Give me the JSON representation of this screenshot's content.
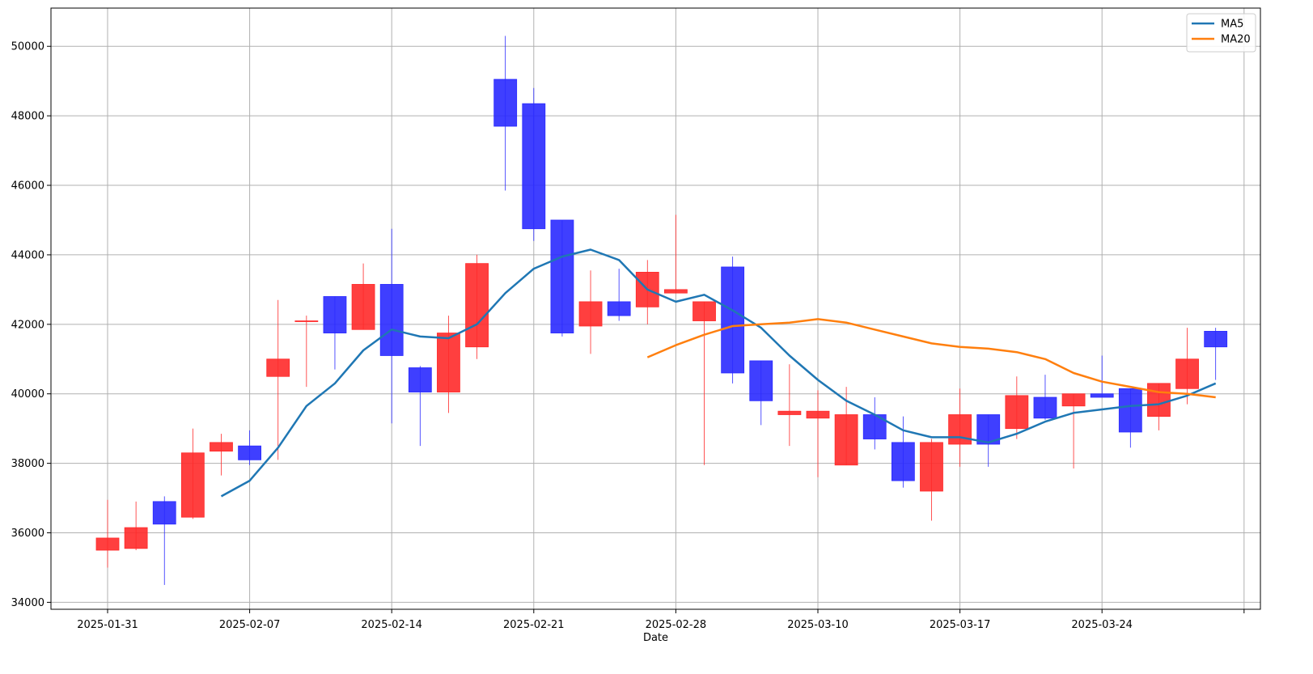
{
  "chart_data": {
    "type": "candlestick",
    "xlabel": "Date",
    "ylabel": "",
    "ylim": [
      33800,
      51100
    ],
    "grid": true,
    "legend_position": "top-right",
    "colors": {
      "up": "#ff2a2a",
      "down": "#2a2aff",
      "ma5": "#1f77b4",
      "ma20": "#ff7f0e"
    },
    "x_ticks": [
      {
        "pos": 0,
        "label": "2025-01-31"
      },
      {
        "pos": 5,
        "label": "2025-02-07"
      },
      {
        "pos": 10,
        "label": "2025-02-14"
      },
      {
        "pos": 15,
        "label": "2025-02-21"
      },
      {
        "pos": 20,
        "label": "2025-02-28"
      },
      {
        "pos": 25,
        "label": "2025-03-10"
      },
      {
        "pos": 30,
        "label": "2025-03-17"
      },
      {
        "pos": 35,
        "label": "2025-03-24"
      },
      {
        "pos": 40,
        "label": ""
      }
    ],
    "y_ticks": [
      34000,
      36000,
      38000,
      40000,
      42000,
      44000,
      46000,
      48000,
      50000
    ],
    "candles": [
      {
        "open": 35500,
        "high": 36950,
        "low": 35000,
        "close": 35850
      },
      {
        "open": 35550,
        "high": 36900,
        "low": 35500,
        "close": 36150
      },
      {
        "open": 36900,
        "high": 37050,
        "low": 34500,
        "close": 36250
      },
      {
        "open": 36450,
        "high": 39000,
        "low": 36400,
        "close": 38300
      },
      {
        "open": 38350,
        "high": 38850,
        "low": 37650,
        "close": 38600
      },
      {
        "open": 38500,
        "high": 38950,
        "low": 37950,
        "close": 38100
      },
      {
        "open": 40500,
        "high": 42700,
        "low": 38100,
        "close": 41000
      },
      {
        "open": 42100,
        "high": 42250,
        "low": 40200,
        "close": 42100
      },
      {
        "open": 42800,
        "high": 42800,
        "low": 40700,
        "close": 41750
      },
      {
        "open": 41850,
        "high": 43750,
        "low": 41850,
        "close": 43150
      },
      {
        "open": 43150,
        "high": 44750,
        "low": 39150,
        "close": 41100
      },
      {
        "open": 40750,
        "high": 40800,
        "low": 38500,
        "close": 40050
      },
      {
        "open": 40050,
        "high": 42250,
        "low": 39450,
        "close": 41750
      },
      {
        "open": 41350,
        "high": 44000,
        "low": 41000,
        "close": 43750
      },
      {
        "open": 49050,
        "high": 50300,
        "low": 45850,
        "close": 47700
      },
      {
        "open": 48350,
        "high": 48800,
        "low": 44400,
        "close": 44750
      },
      {
        "open": 45000,
        "high": 45000,
        "low": 41650,
        "close": 41750
      },
      {
        "open": 41950,
        "high": 43550,
        "low": 41150,
        "close": 42650
      },
      {
        "open": 42650,
        "high": 43600,
        "low": 42100,
        "close": 42250
      },
      {
        "open": 42500,
        "high": 43850,
        "low": 42000,
        "close": 43500
      },
      {
        "open": 42900,
        "high": 45150,
        "low": 42900,
        "close": 43000
      },
      {
        "open": 42100,
        "high": 42650,
        "low": 37950,
        "close": 42650
      },
      {
        "open": 43650,
        "high": 43950,
        "low": 40300,
        "close": 40600
      },
      {
        "open": 40950,
        "high": 40950,
        "low": 39100,
        "close": 39800
      },
      {
        "open": 39400,
        "high": 40850,
        "low": 38500,
        "close": 39500
      },
      {
        "open": 39300,
        "high": 40100,
        "low": 37600,
        "close": 39500
      },
      {
        "open": 37950,
        "high": 40200,
        "low": 37950,
        "close": 39400
      },
      {
        "open": 39400,
        "high": 39900,
        "low": 38400,
        "close": 38700
      },
      {
        "open": 38600,
        "high": 39350,
        "low": 37300,
        "close": 37500
      },
      {
        "open": 37200,
        "high": 38700,
        "low": 36350,
        "close": 38600
      },
      {
        "open": 38550,
        "high": 40150,
        "low": 37900,
        "close": 39400
      },
      {
        "open": 39400,
        "high": 39400,
        "low": 37900,
        "close": 38550
      },
      {
        "open": 39000,
        "high": 40500,
        "low": 38700,
        "close": 39950
      },
      {
        "open": 39900,
        "high": 40550,
        "low": 39250,
        "close": 39300
      },
      {
        "open": 39650,
        "high": 40000,
        "low": 37850,
        "close": 40000
      },
      {
        "open": 40000,
        "high": 41100,
        "low": 39900,
        "close": 39900
      },
      {
        "open": 40150,
        "high": 40150,
        "low": 38450,
        "close": 38900
      },
      {
        "open": 39350,
        "high": 40300,
        "low": 38950,
        "close": 40300
      },
      {
        "open": 40150,
        "high": 41900,
        "low": 39700,
        "close": 41000
      },
      {
        "open": 41800,
        "high": 41900,
        "low": 40400,
        "close": 41350
      }
    ],
    "series": [
      {
        "name": "MA5",
        "x": [
          4,
          5,
          6,
          7,
          8,
          9,
          10,
          11,
          12,
          13,
          14,
          15,
          16,
          17,
          18,
          19,
          20,
          21,
          22,
          23,
          24,
          25,
          26,
          27,
          28,
          29,
          30,
          31,
          32,
          33,
          34,
          35,
          36,
          37,
          38,
          39
        ],
        "values": [
          37050,
          37500,
          38450,
          39650,
          40300,
          41250,
          41850,
          41650,
          41600,
          42000,
          42900,
          43600,
          43950,
          44150,
          43850,
          43000,
          42650,
          42850,
          42400,
          41900,
          41100,
          40400,
          39800,
          39400,
          38950,
          38750,
          38750,
          38600,
          38850,
          39200,
          39450,
          39550,
          39650,
          39700,
          39950,
          40300
        ]
      },
      {
        "name": "MA20",
        "x": [
          19,
          20,
          21,
          22,
          23,
          24,
          25,
          26,
          27,
          28,
          29,
          30,
          31,
          32,
          33,
          34,
          35,
          36,
          37,
          38,
          39
        ],
        "values": [
          41050,
          41400,
          41700,
          41950,
          42000,
          42050,
          42150,
          42050,
          41850,
          41650,
          41450,
          41350,
          41300,
          41200,
          41000,
          40600,
          40350,
          40200,
          40050,
          40000,
          39900
        ]
      }
    ]
  }
}
